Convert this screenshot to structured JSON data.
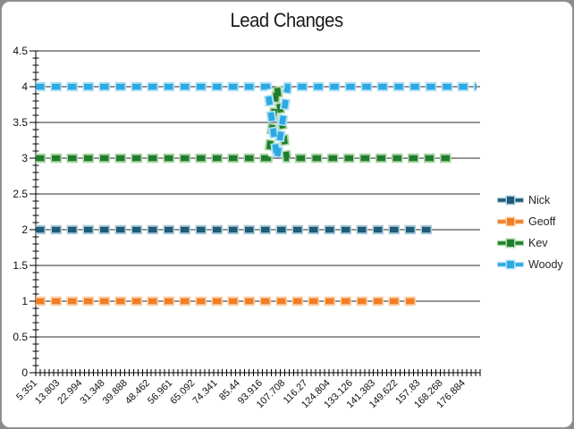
{
  "frame": {
    "background_color": "#8a8a8a",
    "surface_color": "#ffffff"
  },
  "chart_data": {
    "type": "line",
    "title": "Lead Changes",
    "xlabel": "",
    "ylabel": "",
    "ylim": [
      0,
      4.5
    ],
    "ytick_step": 0.5,
    "ytick_labels": [
      "0",
      "0.5",
      "1",
      "1.5",
      "2",
      "2.5",
      "3",
      "3.5",
      "4",
      "4.5"
    ],
    "y_minor_tick_step": 0.1,
    "xtick_labels": [
      "5.351",
      "13.803",
      "22.994",
      "31.348",
      "39.888",
      "48.462",
      "56.961",
      "65.092",
      "74.341",
      "85.44",
      "93.916",
      "107.708",
      "116.27",
      "124.804",
      "133.126",
      "141.383",
      "149.622",
      "157.83",
      "168.268",
      "176.884"
    ],
    "x_minor_tick_count": 101,
    "grid": "horizontal-major",
    "gridline_color": "#2b2b2b",
    "axis_color": "#000000",
    "text_color": "#111111",
    "legend_position": "right",
    "line_style": "thick-dashed-with-square-markers",
    "series": [
      {
        "name": "Nick",
        "color": "#1E5C78",
        "halo_color": "#AECDDB",
        "x_frac_points": [
          [
            0,
            2
          ],
          [
            0.9,
            2
          ]
        ]
      },
      {
        "name": "Geoff",
        "color": "#F07E26",
        "halo_color": "#FACFA6",
        "x_frac_points": [
          [
            0,
            1
          ],
          [
            0.855,
            1
          ]
        ]
      },
      {
        "name": "Kev",
        "color": "#1F7E2C",
        "halo_color": "#ACD6A6",
        "x_frac_points": [
          [
            0,
            3
          ],
          [
            0.523,
            3
          ],
          [
            0.543,
            4
          ],
          [
            0.565,
            3
          ],
          [
            0.945,
            3
          ]
        ]
      },
      {
        "name": "Woody",
        "color": "#2BA9E1",
        "halo_color": "#B0E0F6",
        "x_frac_points": [
          [
            0,
            4
          ],
          [
            0.521,
            4
          ],
          [
            0.543,
            3
          ],
          [
            0.567,
            4
          ],
          [
            0.992,
            4
          ]
        ]
      }
    ],
    "crossover_note": "Kev rises 3->4 and Woody drops 4->3 at the same category between x labels 107.708 and 116.27, then they swap back"
  }
}
